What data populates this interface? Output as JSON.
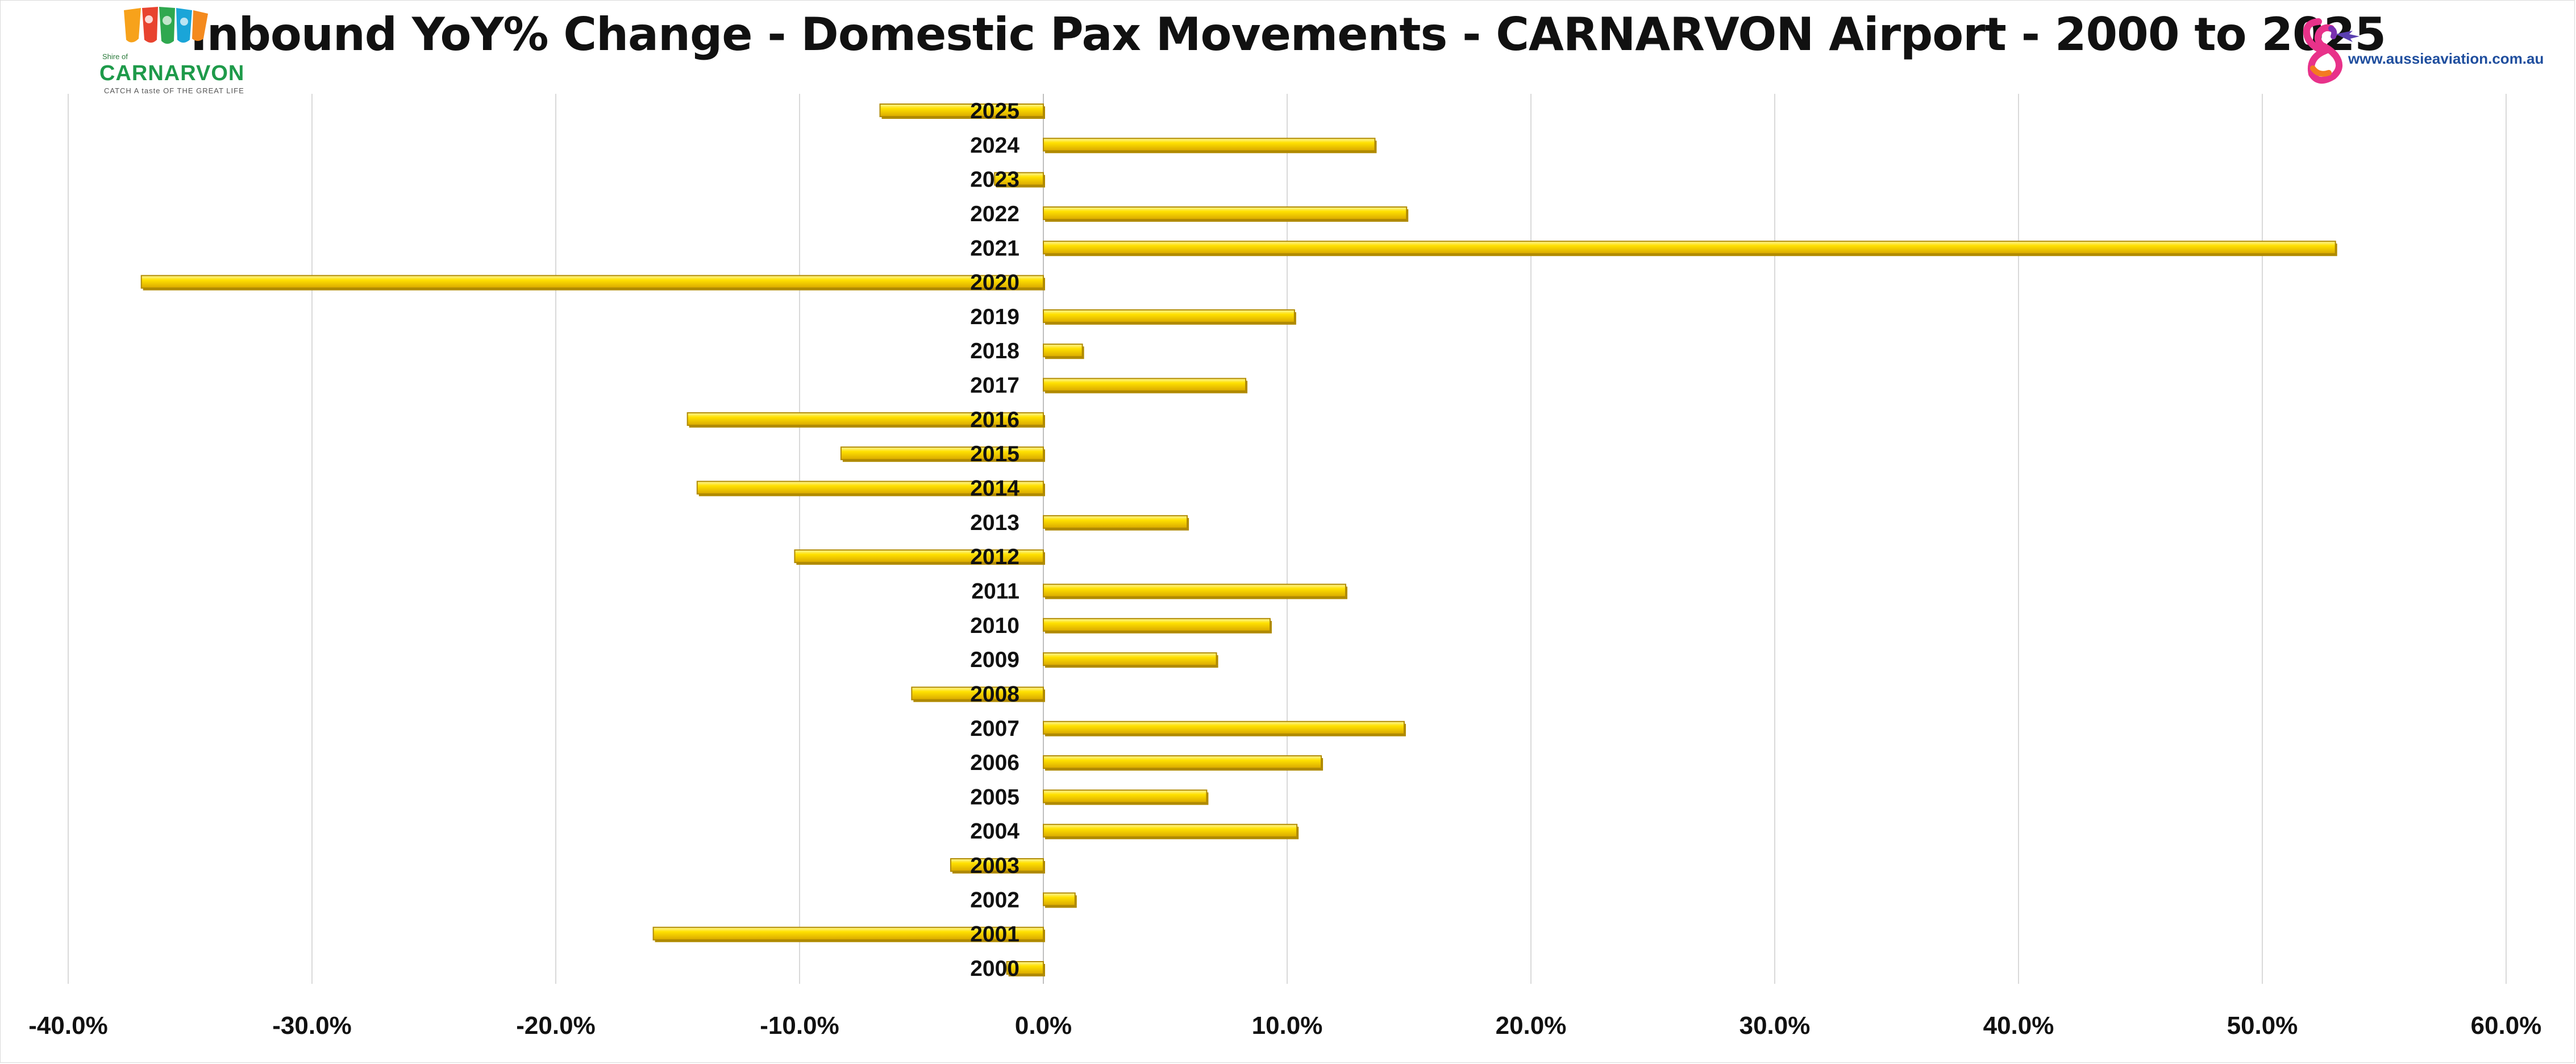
{
  "title": "Inbound YoY% Change - Domestic Pax Movements - CARNARVON Airport - 2000 to 2025",
  "logo_left": {
    "small_text": "Shire of",
    "name": "CARNARVON",
    "tagline": "CATCH A taste OF THE GREAT LIFE"
  },
  "logo_right": {
    "url": "www.aussieaviation.com.au"
  },
  "colors": {
    "bar_fill": "#FFE100",
    "bar_edge": "#B08A00",
    "grid": "#d9d9d9",
    "axis": "#bfbfbf"
  },
  "chart_data": {
    "type": "bar",
    "orientation": "horizontal",
    "title": "Inbound YoY% Change - Domestic Pax Movements - CARNARVON Airport - 2000 to 2025",
    "xlim": [
      -40,
      60
    ],
    "x_ticks": [
      -40,
      -30,
      -20,
      -10,
      0,
      10,
      20,
      30,
      40,
      50,
      60
    ],
    "x_tick_labels": [
      "-40.0%",
      "-30.0%",
      "-20.0%",
      "-10.0%",
      "0.0%",
      "10.0%",
      "20.0%",
      "30.0%",
      "40.0%",
      "50.0%",
      "60.0%"
    ],
    "grid": true,
    "legend": "none",
    "categories": [
      "2025",
      "2024",
      "2023",
      "2022",
      "2021",
      "2020",
      "2019",
      "2018",
      "2017",
      "2016",
      "2015",
      "2014",
      "2013",
      "2012",
      "2011",
      "2010",
      "2009",
      "2008",
      "2007",
      "2006",
      "2005",
      "2004",
      "2003",
      "2002",
      "2001",
      "2000"
    ],
    "values": [
      -6.7,
      13.6,
      -2.0,
      14.9,
      53.0,
      -37.0,
      10.3,
      1.6,
      8.3,
      -14.6,
      -8.3,
      -14.2,
      5.9,
      -10.2,
      12.4,
      9.3,
      7.1,
      -5.4,
      14.8,
      11.4,
      6.7,
      10.4,
      -3.8,
      1.3,
      -16.0,
      -1.5
    ]
  }
}
